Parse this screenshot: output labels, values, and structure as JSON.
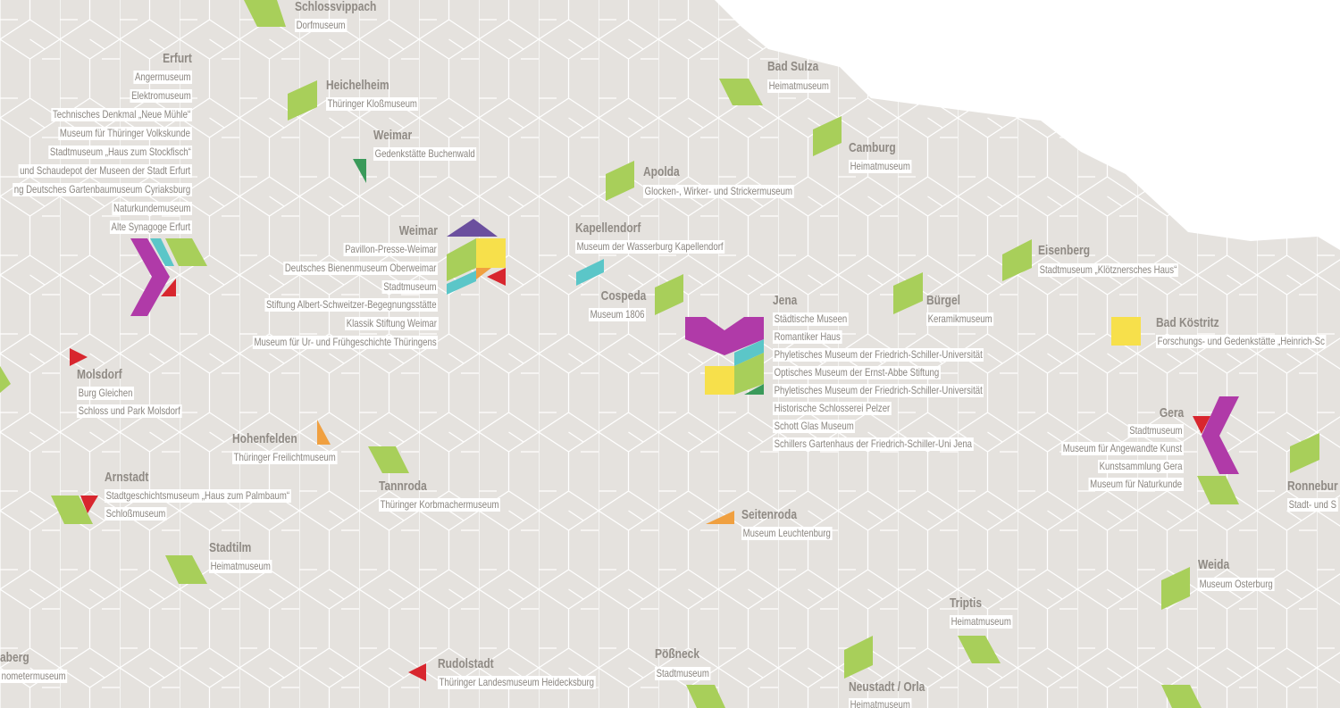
{
  "places": [
    {
      "name": "Schlossvippach",
      "museums": [
        "Dorfmuseum"
      ]
    },
    {
      "name": "Erfurt",
      "museums": [
        "Angermuseum",
        "Elektromuseum",
        "Technisches Denkmal „Neue Mühle“",
        "Museum für Thüringer Volkskunde",
        "Stadtmuseum „Haus zum Stockfisch“",
        "und Schaudepot der Museen der Stadt Erfurt",
        "ng Deutsches Gartenbaumuseum Cyriaksburg",
        "Naturkundemuseum",
        "Alte Synagoge Erfurt"
      ]
    },
    {
      "name": "Heichelheim",
      "museums": [
        "Thüringer Kloßmuseum"
      ]
    },
    {
      "name": "Weimar",
      "museums": [
        "Gedenkstätte Buchenwald"
      ]
    },
    {
      "name": "Bad Sulza",
      "museums": [
        "Heimatmuseum"
      ]
    },
    {
      "name": "Camburg",
      "museums": [
        "Heimatmuseum"
      ]
    },
    {
      "name": "Apolda",
      "museums": [
        "Glocken-, Wirker- und Strickermuseum"
      ]
    },
    {
      "name": "Weimar",
      "museums": [
        "Pavillon-Presse-Weimar",
        "Deutsches Bienenmuseum Oberweimar",
        "Stadtmuseum",
        "Stiftung Albert-Schweitzer-Begegnungsstätte",
        "Klassik Stiftung Weimar",
        "Museum für Ur- und Frühgeschichte Thüringens"
      ]
    },
    {
      "name": "Kapellendorf",
      "museums": [
        "Museum der Wasserburg Kapellendorf"
      ]
    },
    {
      "name": "Eisenberg",
      "museums": [
        "Stadtmuseum „Klötznersches Haus“"
      ]
    },
    {
      "name": "Cospeda",
      "museums": [
        "Museum 1806"
      ]
    },
    {
      "name": "Jena",
      "museums": [
        "Städtische Museen",
        "Romantiker Haus",
        "Phyletisches Museum der Friedrich-Schiller-Universität",
        "Optisches Museum der Ernst-Abbe Stiftung",
        "Phyletisches Museum der Friedrich-Schiller-Universität",
        "Historische Schlosserei Pelzer",
        "Schott Glas Museum",
        "Schillers Gartenhaus der Friedrich-Schiller-Uni Jena"
      ]
    },
    {
      "name": "Bürgel",
      "museums": [
        "Keramikmuseum"
      ]
    },
    {
      "name": "Bad Köstritz",
      "museums": [
        "Forschungs- und Gedenkstätte „Heinrich-Sc"
      ]
    },
    {
      "name": "Molsdorf",
      "museums": [
        "Burg Gleichen",
        "Schloss und Park Molsdorf"
      ]
    },
    {
      "name": "Gera",
      "museums": [
        "Stadtmuseum",
        "Museum für Angewandte Kunst",
        "Kunstsammlung Gera",
        "Museum für Naturkunde"
      ]
    },
    {
      "name": "Hohenfelden",
      "museums": [
        "Thüringer Freilichtmuseum"
      ]
    },
    {
      "name": "Arnstadt",
      "museums": [
        "Stadtgeschichtsmuseum „Haus zum Palmbaum“",
        "Schloßmuseum"
      ]
    },
    {
      "name": "Tannroda",
      "museums": [
        "Thüringer Korbmachermuseum"
      ]
    },
    {
      "name": "Ronnebur",
      "museums": [
        "Stadt- und S"
      ]
    },
    {
      "name": "Seitenroda",
      "museums": [
        "Museum Leuchtenburg"
      ]
    },
    {
      "name": "Stadtilm",
      "museums": [
        "Heimatmuseum"
      ]
    },
    {
      "name": "Weida",
      "museums": [
        "Museum Osterburg"
      ]
    },
    {
      "name": "Triptis",
      "museums": [
        "Heimatmuseum"
      ]
    },
    {
      "name": "aberg",
      "museums": [
        "nometermuseum"
      ]
    },
    {
      "name": "Rudolstadt",
      "museums": [
        "Thüringer Landesmuseum Heidecksburg"
      ]
    },
    {
      "name": "Pößneck",
      "museums": [
        "Stadtmuseum"
      ]
    },
    {
      "name": "Neustadt / Orla",
      "museums": [
        "Heimatmuseum"
      ]
    }
  ]
}
